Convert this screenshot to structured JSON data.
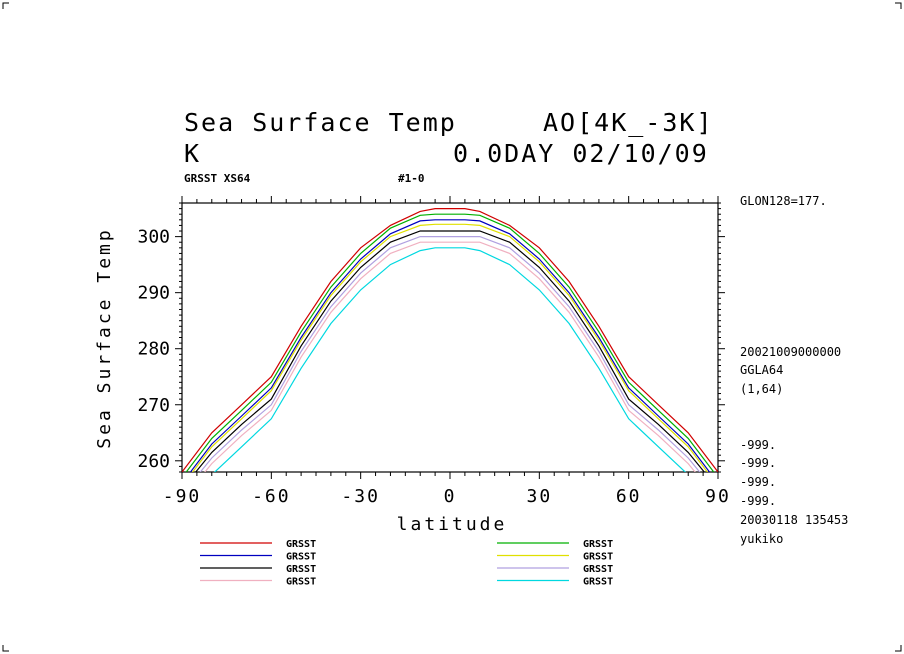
{
  "header": {
    "title_left": "Sea Surface Temp",
    "title_right": "AO[4K_-3K]",
    "unit": "K",
    "day_date": "0.0DAY 02/10/09",
    "sub_left": "GRSST XS64",
    "sub_mid": "#1-0"
  },
  "side_info": {
    "glon": "GLON128=177.",
    "datetime": "20021009000000",
    "grid": "GGLA64",
    "range": "(1,64)",
    "undef": [
      "-999.",
      "-999.",
      "-999.",
      "-999."
    ],
    "created": "20030118 135453",
    "user": "yukiko"
  },
  "chart_data": {
    "type": "line",
    "title": "Sea Surface Temp",
    "xlabel": "latitude",
    "ylabel": "Sea Surface Temp",
    "xlim": [
      -90,
      90
    ],
    "ylim": [
      258,
      306
    ],
    "x_ticks": [
      -90,
      -60,
      -30,
      0,
      30,
      60,
      90
    ],
    "x_tick_labels": [
      "-90",
      "-60",
      "-30",
      "0",
      "30",
      "60",
      "90"
    ],
    "y_ticks": [
      260,
      270,
      280,
      290,
      300
    ],
    "y_tick_labels": [
      "260",
      "270",
      "280",
      "290",
      "300"
    ],
    "grid": false,
    "legend_position": "bottom",
    "x": [
      -90,
      -80,
      -70,
      -60,
      -50,
      -40,
      -30,
      -20,
      -10,
      -5,
      0,
      5,
      10,
      20,
      30,
      40,
      50,
      60,
      70,
      80,
      90
    ],
    "series": [
      {
        "name": "GRSST",
        "color": "#d00000",
        "values": [
          258,
          265,
          270,
          275,
          284,
          292,
          298,
          302,
          304.5,
          305,
          305,
          305,
          304.5,
          302,
          298,
          292,
          284,
          275,
          270,
          265,
          258
        ]
      },
      {
        "name": "GRSST",
        "color": "#00b000",
        "values": [
          257,
          264,
          269,
          274,
          283,
          291,
          297,
          301.5,
          303.8,
          304,
          304,
          304,
          303.8,
          301.5,
          297,
          291,
          283,
          274,
          269,
          264,
          257
        ]
      },
      {
        "name": "GRSST",
        "color": "#0000c0",
        "values": [
          256,
          263,
          268,
          273,
          282,
          290,
          296,
          300.5,
          302.8,
          303,
          303,
          303,
          302.8,
          300.5,
          296,
          290,
          282,
          273,
          268,
          263,
          256
        ]
      },
      {
        "name": "GRSST",
        "color": "#e0e000",
        "values": [
          255.5,
          262.5,
          267.5,
          272.5,
          281.5,
          289.5,
          295.5,
          300,
          302,
          302.2,
          302.2,
          302.2,
          302,
          300,
          295.5,
          289.5,
          281.5,
          272.5,
          267.5,
          262.5,
          255.5
        ]
      },
      {
        "name": "GRSST",
        "color": "#000000",
        "values": [
          255,
          261.5,
          266.5,
          271,
          280.5,
          288.5,
          294.5,
          299,
          301,
          301,
          301,
          301,
          301,
          299,
          294.5,
          288.5,
          280.5,
          271,
          266.5,
          261.5,
          255
        ]
      },
      {
        "name": "GRSST",
        "color": "#b0a0e0",
        "values": [
          254,
          260.5,
          265.5,
          270,
          279.5,
          287.5,
          293.5,
          298,
          300,
          300,
          300,
          300,
          300,
          298,
          293.5,
          287.5,
          279.5,
          270,
          265.5,
          260.5,
          254
        ]
      },
      {
        "name": "GRSST",
        "color": "#f0b0c0",
        "values": [
          253,
          259.5,
          264.5,
          269,
          278.5,
          286.5,
          292.5,
          297,
          299,
          299,
          299,
          299,
          299,
          297,
          292.5,
          286.5,
          278.5,
          269,
          264.5,
          259.5,
          253
        ]
      },
      {
        "name": "GRSST",
        "color": "#00d8e0",
        "values": [
          251,
          257.5,
          262.5,
          267.5,
          276.5,
          284.5,
          290.5,
          295,
          297.5,
          298,
          298,
          298,
          297.5,
          295,
          290.5,
          284.5,
          276.5,
          267.5,
          262.5,
          257.5,
          251
        ]
      }
    ]
  }
}
